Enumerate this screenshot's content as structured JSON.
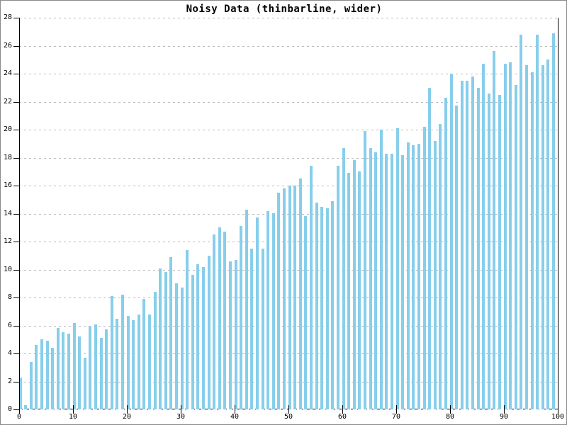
{
  "chart_data": {
    "type": "bar",
    "title": "Noisy Data (thinbarline, wider)",
    "xlabel": "",
    "ylabel": "",
    "xlim": [
      0,
      100
    ],
    "ylim": [
      0,
      28
    ],
    "x_ticks": [
      0,
      10,
      20,
      30,
      40,
      50,
      60,
      70,
      80,
      90,
      100
    ],
    "y_ticks": [
      0,
      2,
      4,
      6,
      8,
      10,
      12,
      14,
      16,
      18,
      20,
      22,
      24,
      26,
      28
    ],
    "grid": "horizontal dotted gray lines at every y tick, black dashed line at y=0",
    "legend_position": "none",
    "bar_color": "#87CEEB",
    "axis_color": "#000000",
    "grid_color": "#b9b9b9",
    "background_color": "#ffffff",
    "canvas_border_color": "#8a8a8a",
    "x": [
      0,
      1,
      2,
      3,
      4,
      5,
      6,
      7,
      8,
      9,
      10,
      11,
      12,
      13,
      14,
      15,
      16,
      17,
      18,
      19,
      20,
      21,
      22,
      23,
      24,
      25,
      26,
      27,
      28,
      29,
      30,
      31,
      32,
      33,
      34,
      35,
      36,
      37,
      38,
      39,
      40,
      41,
      42,
      43,
      44,
      45,
      46,
      47,
      48,
      49,
      50,
      51,
      52,
      53,
      54,
      55,
      56,
      57,
      58,
      59,
      60,
      61,
      62,
      63,
      64,
      65,
      66,
      67,
      68,
      69,
      70,
      71,
      72,
      73,
      74,
      75,
      76,
      77,
      78,
      79,
      80,
      81,
      82,
      83,
      84,
      85,
      86,
      87,
      88,
      89,
      90,
      91,
      92,
      93,
      94,
      95,
      96,
      97,
      98,
      99
    ],
    "values": [
      2.3,
      0.3,
      3.4,
      4.6,
      5.0,
      4.9,
      4.4,
      5.8,
      5.5,
      5.4,
      6.2,
      5.2,
      3.7,
      5.9,
      6.1,
      5.1,
      5.7,
      8.1,
      6.5,
      8.2,
      6.7,
      6.4,
      6.8,
      7.9,
      6.8,
      8.4,
      10.1,
      9.8,
      10.9,
      9.0,
      8.7,
      11.4,
      9.6,
      10.4,
      10.2,
      11.0,
      12.5,
      13.0,
      12.7,
      10.6,
      10.7,
      13.1,
      14.3,
      11.5,
      13.7,
      11.5,
      14.2,
      14.0,
      15.5,
      15.8,
      16.0,
      16.0,
      16.5,
      13.8,
      17.4,
      14.8,
      14.5,
      14.4,
      14.9,
      17.4,
      18.7,
      16.9,
      17.8,
      17.0,
      19.9,
      18.7,
      18.4,
      20.0,
      18.3,
      18.3,
      20.1,
      18.2,
      19.1,
      18.9,
      19.0,
      20.2,
      23.0,
      19.2,
      20.4,
      22.3,
      24.0,
      21.7,
      23.5,
      23.5,
      23.8,
      23.0,
      24.7,
      22.6,
      25.6,
      22.5,
      24.7,
      24.8,
      23.2,
      26.8,
      24.6,
      24.1,
      26.8,
      24.6,
      25.0,
      26.9
    ]
  }
}
